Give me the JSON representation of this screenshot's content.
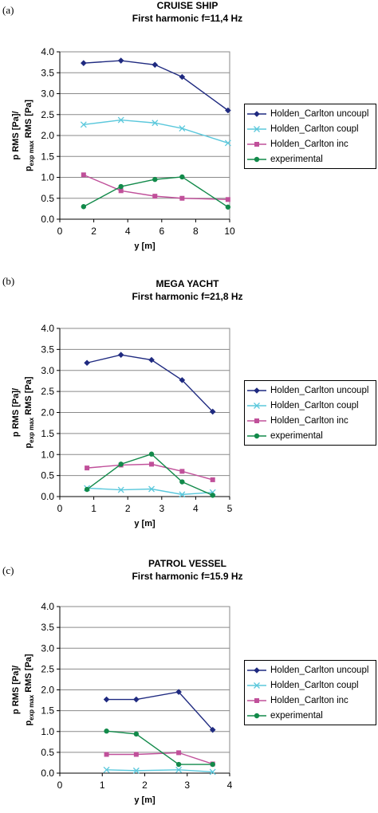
{
  "chart_data": [
    {
      "type": "line",
      "panel_label": "(a)",
      "title": "CRUISE SHIP",
      "subtitle": "First harmonic f=11,4 Hz",
      "xlabel": "y [m]",
      "ylabel": "p RMS [Pa]/",
      "ylabel_line2_main": "p",
      "ylabel_line2_sub": "exp max",
      "ylabel_line2_rest": " RMS [Pa]",
      "xlim": [
        0,
        10
      ],
      "ylim": [
        0,
        4
      ],
      "xticks": [
        "0",
        "2",
        "4",
        "6",
        "8",
        "10"
      ],
      "yticks": [
        "0.0",
        "0.5",
        "1.0",
        "1.5",
        "2.0",
        "2.5",
        "3.0",
        "3.5",
        "4.0"
      ],
      "grid": "horizontal",
      "legend_position": "right",
      "series": [
        {
          "name": "Holden_Carlton uncoupl",
          "color": "#1f2a80",
          "marker": "diamond",
          "x": [
            1.4,
            3.6,
            5.6,
            7.2,
            9.9
          ],
          "y": [
            3.73,
            3.79,
            3.69,
            3.4,
            2.6
          ]
        },
        {
          "name": "Holden_Carlton coupl",
          "color": "#5bc8dc",
          "marker": "x",
          "x": [
            1.4,
            3.6,
            5.6,
            7.2,
            9.9
          ],
          "y": [
            2.26,
            2.37,
            2.3,
            2.17,
            1.82
          ]
        },
        {
          "name": "Holden_Carlton inc",
          "color": "#c0509a",
          "marker": "square",
          "x": [
            1.4,
            3.6,
            5.6,
            7.2,
            9.9
          ],
          "y": [
            1.06,
            0.68,
            0.55,
            0.5,
            0.47
          ]
        },
        {
          "name": "experimental",
          "color": "#128a4a",
          "marker": "circle",
          "x": [
            1.4,
            3.6,
            5.6,
            7.2,
            9.9
          ],
          "y": [
            0.3,
            0.78,
            0.95,
            1.01,
            0.29
          ]
        }
      ]
    },
    {
      "type": "line",
      "panel_label": "(b)",
      "title": "MEGA YACHT",
      "subtitle": "First harmonic f=21,8 Hz",
      "xlabel": "y [m]",
      "ylabel": "p RMS [Pa]/",
      "ylabel_line2_main": "p",
      "ylabel_line2_sub": "exp max",
      "ylabel_line2_rest": " RMS [Pa]",
      "xlim": [
        0,
        5
      ],
      "ylim": [
        0,
        4
      ],
      "xticks": [
        "0",
        "1",
        "2",
        "3",
        "4",
        "5"
      ],
      "yticks": [
        "0.0",
        "0.5",
        "1.0",
        "1.5",
        "2.0",
        "2.5",
        "3.0",
        "3.5",
        "4.0"
      ],
      "grid": "horizontal",
      "legend_position": "right",
      "series": [
        {
          "name": "Holden_Carlton uncoupl",
          "color": "#1f2a80",
          "marker": "diamond",
          "x": [
            0.8,
            1.8,
            2.7,
            3.6,
            4.5
          ],
          "y": [
            3.18,
            3.37,
            3.25,
            2.77,
            2.02
          ]
        },
        {
          "name": "Holden_Carlton coupl",
          "color": "#5bc8dc",
          "marker": "x",
          "x": [
            0.8,
            1.8,
            2.7,
            3.6,
            4.5
          ],
          "y": [
            0.2,
            0.16,
            0.18,
            0.05,
            0.1
          ]
        },
        {
          "name": "Holden_Carlton inc",
          "color": "#c0509a",
          "marker": "square",
          "x": [
            0.8,
            1.8,
            2.7,
            3.6,
            4.5
          ],
          "y": [
            0.68,
            0.75,
            0.77,
            0.6,
            0.4
          ]
        },
        {
          "name": "experimental",
          "color": "#128a4a",
          "marker": "circle",
          "x": [
            0.8,
            1.8,
            2.7,
            3.6,
            4.5
          ],
          "y": [
            0.17,
            0.77,
            1.01,
            0.35,
            0.03
          ]
        }
      ]
    },
    {
      "type": "line",
      "panel_label": "(c)",
      "title": "PATROL VESSEL",
      "subtitle": "First harmonic f=15.9 Hz",
      "xlabel": "y [m]",
      "ylabel": "p RMS [Pa]/",
      "ylabel_line2_main": "p",
      "ylabel_line2_sub": "exp max",
      "ylabel_line2_rest": " RMS [Pa]",
      "xlim": [
        0,
        4
      ],
      "ylim": [
        0,
        4
      ],
      "xticks": [
        "0",
        "1",
        "2",
        "3",
        "4"
      ],
      "yticks": [
        "0.0",
        "0.5",
        "1.0",
        "1.5",
        "2.0",
        "2.5",
        "3.0",
        "3.5",
        "4.0"
      ],
      "grid": "horizontal",
      "legend_position": "right",
      "series": [
        {
          "name": "Holden_Carlton uncoupl",
          "color": "#1f2a80",
          "marker": "diamond",
          "x": [
            1.1,
            1.8,
            2.8,
            3.6
          ],
          "y": [
            1.77,
            1.77,
            1.95,
            1.04
          ]
        },
        {
          "name": "Holden_Carlton coupl",
          "color": "#5bc8dc",
          "marker": "x",
          "x": [
            1.1,
            1.8,
            2.8,
            3.6
          ],
          "y": [
            0.08,
            0.06,
            0.08,
            0.03
          ]
        },
        {
          "name": "Holden_Carlton inc",
          "color": "#c0509a",
          "marker": "square",
          "x": [
            1.1,
            1.8,
            2.8,
            3.6
          ],
          "y": [
            0.45,
            0.45,
            0.49,
            0.22
          ]
        },
        {
          "name": "experimental",
          "color": "#128a4a",
          "marker": "circle",
          "x": [
            1.1,
            1.8,
            2.8,
            3.6
          ],
          "y": [
            1.01,
            0.94,
            0.21,
            0.21
          ]
        }
      ]
    }
  ]
}
